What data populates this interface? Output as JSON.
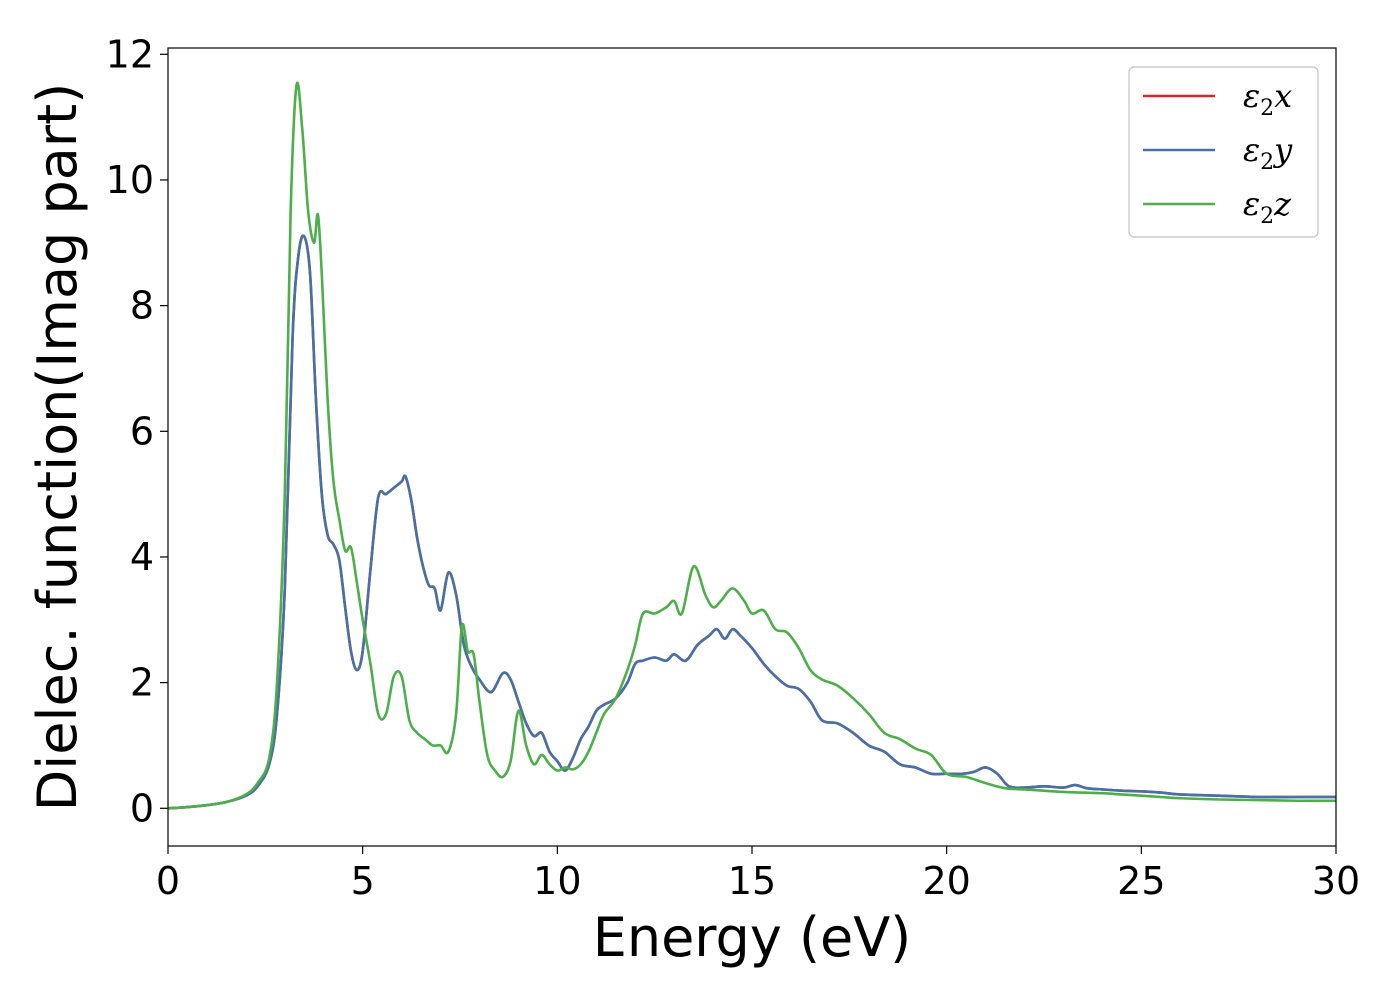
{
  "chart_data": {
    "type": "line",
    "xlabel": "Energy (eV)",
    "ylabel": "Dielec. function(Imag part)",
    "xlim": [
      0,
      30
    ],
    "ylim": [
      -0.6,
      12.1
    ],
    "xticks": [
      0,
      5,
      10,
      15,
      20,
      25,
      30
    ],
    "yticks": [
      0,
      2,
      4,
      6,
      8,
      10,
      12
    ],
    "grid": false,
    "legend": "top-right",
    "series": [
      {
        "name": "ε2x",
        "legend": {
          "main": "ε",
          "sub": "2",
          "tail": "x"
        },
        "color": "#d62728",
        "x": [
          0,
          0.5,
          1,
          1.5,
          2,
          2.3,
          2.6,
          2.8,
          3.0,
          3.2,
          3.35,
          3.5,
          3.65,
          3.8,
          3.95,
          4.1,
          4.25,
          4.4,
          4.55,
          4.7,
          4.85,
          5.0,
          5.2,
          5.4,
          5.6,
          5.8,
          6.0,
          6.1,
          6.25,
          6.4,
          6.55,
          6.7,
          6.85,
          7.0,
          7.2,
          7.4,
          7.6,
          7.8,
          8.0,
          8.3,
          8.6,
          8.8,
          9.0,
          9.2,
          9.4,
          9.6,
          9.8,
          10.0,
          10.2,
          10.4,
          10.6,
          10.8,
          11.0,
          11.2,
          11.5,
          11.8,
          12.0,
          12.2,
          12.5,
          12.8,
          13.0,
          13.3,
          13.6,
          13.9,
          14.1,
          14.3,
          14.5,
          14.7,
          15.0,
          15.3,
          15.6,
          15.9,
          16.2,
          16.5,
          16.8,
          17.2,
          17.6,
          18.0,
          18.4,
          18.8,
          19.2,
          19.6,
          20.0,
          20.4,
          20.7,
          21.0,
          21.3,
          21.6,
          22.0,
          22.5,
          23.0,
          23.3,
          23.6,
          24.0,
          24.5,
          25.0,
          25.5,
          26.0,
          27.0,
          28.0,
          29.0,
          30.0
        ],
        "y": [
          0.0,
          0.02,
          0.05,
          0.1,
          0.2,
          0.35,
          0.7,
          1.5,
          3.5,
          7.5,
          8.8,
          9.1,
          8.5,
          6.5,
          5.0,
          4.35,
          4.2,
          3.95,
          3.2,
          2.5,
          2.2,
          2.5,
          3.8,
          4.95,
          5.0,
          5.1,
          5.2,
          5.28,
          4.9,
          4.3,
          3.85,
          3.55,
          3.5,
          3.15,
          3.75,
          3.4,
          2.6,
          2.25,
          2.05,
          1.85,
          2.15,
          2.05,
          1.7,
          1.35,
          1.15,
          1.2,
          0.9,
          0.75,
          0.6,
          0.8,
          1.1,
          1.3,
          1.55,
          1.65,
          1.75,
          2.0,
          2.3,
          2.35,
          2.4,
          2.35,
          2.45,
          2.35,
          2.6,
          2.75,
          2.85,
          2.7,
          2.85,
          2.75,
          2.55,
          2.3,
          2.1,
          1.95,
          1.9,
          1.7,
          1.4,
          1.35,
          1.2,
          1.0,
          0.9,
          0.7,
          0.65,
          0.55,
          0.55,
          0.55,
          0.58,
          0.65,
          0.55,
          0.35,
          0.33,
          0.35,
          0.33,
          0.37,
          0.32,
          0.3,
          0.28,
          0.27,
          0.25,
          0.22,
          0.2,
          0.18,
          0.18,
          0.18
        ]
      },
      {
        "name": "ε2y",
        "legend": {
          "main": "ε",
          "sub": "2",
          "tail": "y"
        },
        "color": "#4472a8",
        "x": [
          0,
          0.5,
          1,
          1.5,
          2,
          2.3,
          2.6,
          2.8,
          3.0,
          3.2,
          3.35,
          3.5,
          3.65,
          3.8,
          3.95,
          4.1,
          4.25,
          4.4,
          4.55,
          4.7,
          4.85,
          5.0,
          5.2,
          5.4,
          5.6,
          5.8,
          6.0,
          6.1,
          6.25,
          6.4,
          6.55,
          6.7,
          6.85,
          7.0,
          7.2,
          7.4,
          7.6,
          7.8,
          8.0,
          8.3,
          8.6,
          8.8,
          9.0,
          9.2,
          9.4,
          9.6,
          9.8,
          10.0,
          10.2,
          10.4,
          10.6,
          10.8,
          11.0,
          11.2,
          11.5,
          11.8,
          12.0,
          12.2,
          12.5,
          12.8,
          13.0,
          13.3,
          13.6,
          13.9,
          14.1,
          14.3,
          14.5,
          14.7,
          15.0,
          15.3,
          15.6,
          15.9,
          16.2,
          16.5,
          16.8,
          17.2,
          17.6,
          18.0,
          18.4,
          18.8,
          19.2,
          19.6,
          20.0,
          20.4,
          20.7,
          21.0,
          21.3,
          21.6,
          22.0,
          22.5,
          23.0,
          23.3,
          23.6,
          24.0,
          24.5,
          25.0,
          25.5,
          26.0,
          27.0,
          28.0,
          29.0,
          30.0
        ],
        "y": [
          0.0,
          0.02,
          0.05,
          0.1,
          0.2,
          0.35,
          0.7,
          1.5,
          3.5,
          7.5,
          8.8,
          9.1,
          8.5,
          6.5,
          5.0,
          4.35,
          4.2,
          3.95,
          3.2,
          2.5,
          2.2,
          2.5,
          3.8,
          4.95,
          5.0,
          5.1,
          5.2,
          5.28,
          4.9,
          4.3,
          3.85,
          3.55,
          3.5,
          3.15,
          3.75,
          3.4,
          2.6,
          2.25,
          2.05,
          1.85,
          2.15,
          2.05,
          1.7,
          1.35,
          1.15,
          1.2,
          0.9,
          0.75,
          0.6,
          0.8,
          1.1,
          1.3,
          1.55,
          1.65,
          1.75,
          2.0,
          2.3,
          2.35,
          2.4,
          2.35,
          2.45,
          2.35,
          2.6,
          2.75,
          2.85,
          2.7,
          2.85,
          2.75,
          2.55,
          2.3,
          2.1,
          1.95,
          1.9,
          1.7,
          1.4,
          1.35,
          1.2,
          1.0,
          0.9,
          0.7,
          0.65,
          0.55,
          0.55,
          0.55,
          0.58,
          0.65,
          0.55,
          0.35,
          0.33,
          0.35,
          0.33,
          0.37,
          0.32,
          0.3,
          0.28,
          0.27,
          0.25,
          0.22,
          0.2,
          0.18,
          0.18,
          0.18
        ]
      },
      {
        "name": "ε2z",
        "legend": {
          "main": "ε",
          "sub": "2",
          "tail": "z"
        },
        "color": "#4daf4a",
        "x": [
          0,
          0.5,
          1,
          1.5,
          2,
          2.3,
          2.6,
          2.8,
          3.0,
          3.15,
          3.3,
          3.45,
          3.6,
          3.75,
          3.85,
          3.95,
          4.1,
          4.25,
          4.4,
          4.55,
          4.7,
          4.85,
          5.0,
          5.2,
          5.4,
          5.6,
          5.8,
          6.0,
          6.2,
          6.4,
          6.6,
          6.8,
          7.0,
          7.2,
          7.4,
          7.55,
          7.7,
          7.85,
          8.0,
          8.2,
          8.4,
          8.6,
          8.8,
          9.0,
          9.2,
          9.4,
          9.6,
          9.8,
          10.0,
          10.2,
          10.4,
          10.6,
          10.8,
          11.0,
          11.2,
          11.5,
          11.8,
          12.0,
          12.2,
          12.5,
          12.8,
          13.0,
          13.2,
          13.5,
          13.8,
          14.0,
          14.2,
          14.5,
          14.8,
          15.0,
          15.3,
          15.6,
          15.9,
          16.2,
          16.5,
          16.8,
          17.2,
          17.6,
          18.0,
          18.4,
          18.8,
          19.2,
          19.6,
          20.0,
          20.5,
          21.0,
          21.5,
          22.0,
          22.5,
          23.0,
          23.5,
          24.0,
          24.5,
          25.0,
          25.5,
          26.0,
          27.0,
          28.0,
          29.0,
          30.0
        ],
        "y": [
          0.0,
          0.02,
          0.05,
          0.1,
          0.22,
          0.4,
          0.8,
          2.0,
          5.0,
          9.5,
          11.5,
          10.8,
          9.5,
          9.0,
          9.45,
          8.5,
          6.5,
          5.2,
          4.6,
          4.1,
          4.15,
          3.6,
          3.0,
          2.3,
          1.5,
          1.5,
          2.1,
          2.1,
          1.4,
          1.2,
          1.1,
          1.0,
          1.0,
          0.9,
          1.5,
          2.9,
          2.5,
          2.45,
          1.7,
          0.85,
          0.6,
          0.5,
          0.75,
          1.55,
          1.0,
          0.7,
          0.85,
          0.7,
          0.6,
          0.65,
          0.62,
          0.7,
          0.9,
          1.2,
          1.5,
          1.75,
          2.2,
          2.6,
          3.1,
          3.1,
          3.2,
          3.3,
          3.1,
          3.85,
          3.4,
          3.2,
          3.3,
          3.5,
          3.3,
          3.1,
          3.15,
          2.85,
          2.8,
          2.55,
          2.2,
          2.05,
          1.95,
          1.75,
          1.5,
          1.2,
          1.1,
          0.95,
          0.85,
          0.55,
          0.5,
          0.4,
          0.32,
          0.3,
          0.28,
          0.26,
          0.25,
          0.24,
          0.22,
          0.2,
          0.18,
          0.16,
          0.14,
          0.13,
          0.12,
          0.12
        ]
      }
    ]
  }
}
